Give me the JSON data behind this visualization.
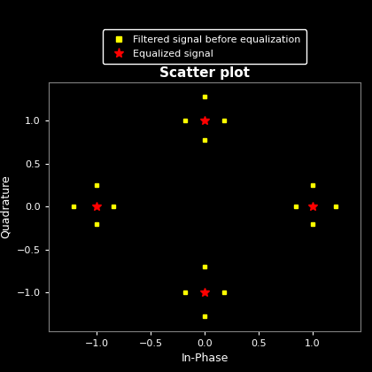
{
  "title": "Scatter plot",
  "xlabel": "In-Phase",
  "ylabel": "Quadrature",
  "background_color": "#000000",
  "text_color": "#ffffff",
  "axes_edge_color": "#808080",
  "yellow_x": [
    -1.22,
    -1.0,
    -1.0,
    -0.85,
    -0.18,
    0.0,
    0.0,
    0.18,
    -0.18,
    0.0,
    0.0,
    0.18,
    0.85,
    1.0,
    1.0,
    1.22
  ],
  "yellow_y": [
    0.0,
    0.25,
    -0.2,
    0.0,
    1.0,
    1.28,
    0.78,
    1.0,
    -1.0,
    -0.7,
    -1.28,
    -1.0,
    0.0,
    0.25,
    -0.2,
    0.0
  ],
  "red_x": [
    -1.0,
    0.0,
    1.0,
    0.0
  ],
  "red_y": [
    0.0,
    1.0,
    0.0,
    -1.0
  ],
  "xlim": [
    -1.45,
    1.45
  ],
  "ylim": [
    -1.45,
    1.45
  ],
  "xticks": [
    -1,
    -0.5,
    0,
    0.5,
    1
  ],
  "yticks": [
    -1,
    -0.5,
    0,
    0.5,
    1
  ],
  "legend_label_yellow": "Filtered signal before equalization",
  "legend_label_red": "Equalized signal",
  "title_fontsize": 11,
  "label_fontsize": 9,
  "tick_fontsize": 8,
  "legend_fontsize": 8,
  "yellow_markersize": 3,
  "red_markersize": 7
}
